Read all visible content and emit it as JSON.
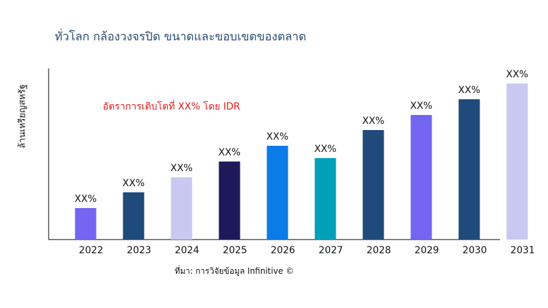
{
  "title": "ทั่วโลก กล้องวงจรปิด ขนาดและขอบเขตของตลาด",
  "source": "ที่มา: การวิจัยข้อมูล Infinitive ©",
  "chart_data": {
    "type": "bar",
    "title": "ทั่วโลก กล้องวงจรปิด ขนาดและขอบเขตของตลาด",
    "xlabel": "",
    "ylabel": "ล้านเหรียญสหรัฐ",
    "annotation": "อัตราการเติบโตที่ XX% โดย IDR",
    "categories": [
      "2022",
      "2023",
      "2024",
      "2025",
      "2026",
      "2027",
      "2028",
      "2029",
      "2030",
      "2031"
    ],
    "values": [
      46,
      69,
      91,
      114,
      137,
      119,
      160,
      182,
      205,
      228
    ],
    "data_labels": [
      "XX%",
      "XX%",
      "XX%",
      "XX%",
      "XX%",
      "XX%",
      "XX%",
      "XX%",
      "XX%",
      "XX%"
    ],
    "colors": [
      "#7366f0",
      "#1f4a7a",
      "#c8c8f0",
      "#1e1a5a",
      "#0b7be6",
      "#00a0b8",
      "#1f4a7a",
      "#7366f0",
      "#1f4a7a",
      "#c8c8f0"
    ],
    "ylim": [
      0,
      250
    ],
    "grid": false,
    "y_tick_labels": false
  }
}
